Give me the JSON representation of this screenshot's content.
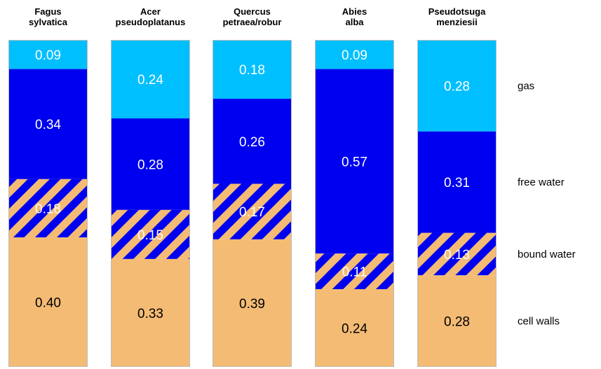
{
  "chart_data": {
    "type": "bar",
    "stacked": true,
    "normalized": true,
    "categories": [
      "Fagus sylvatica",
      "Acer pseudoplatanus",
      "Quercus petraea/robur",
      "Abies alba",
      "Pseudotsuga menziesii"
    ],
    "category_lines": [
      [
        "Fagus",
        "sylvatica"
      ],
      [
        "Acer",
        "pseudoplatanus"
      ],
      [
        "Quercus",
        "petraea/robur"
      ],
      [
        "Abies",
        "alba"
      ],
      [
        "Pseudotsuga",
        "menziesii"
      ]
    ],
    "series_order_top_to_bottom": [
      "gas",
      "free water",
      "bound water",
      "cell walls"
    ],
    "series": [
      {
        "name": "gas",
        "values": [
          0.09,
          0.24,
          0.18,
          0.09,
          0.28
        ],
        "color": "#00BFFF",
        "pattern": "solid"
      },
      {
        "name": "free water",
        "values": [
          0.34,
          0.28,
          0.26,
          0.57,
          0.31
        ],
        "color": "#0000F0",
        "pattern": "solid"
      },
      {
        "name": "bound water",
        "values": [
          0.18,
          0.15,
          0.17,
          0.11,
          0.13
        ],
        "color": "#0000F0",
        "stripe_color": "#F4BB74",
        "pattern": "diagonal-stripes"
      },
      {
        "name": "cell walls",
        "values": [
          0.4,
          0.33,
          0.39,
          0.24,
          0.28
        ],
        "color": "#F4BB74",
        "pattern": "solid"
      }
    ],
    "labels": [
      [
        "0.09",
        "0.34",
        "0.18",
        "0.40"
      ],
      [
        "0.24",
        "0.28",
        "0.15",
        "0.33"
      ],
      [
        "0.18",
        "0.26",
        "0.17",
        "0.39"
      ],
      [
        "0.09",
        "0.57",
        "0.11",
        "0.24"
      ],
      [
        "0.28",
        "0.31",
        "0.13",
        "0.28"
      ]
    ],
    "legend": {
      "placement": "right",
      "entries": [
        "gas",
        "free water",
        "bound water",
        "cell walls"
      ]
    },
    "grid": false,
    "axes": false
  }
}
